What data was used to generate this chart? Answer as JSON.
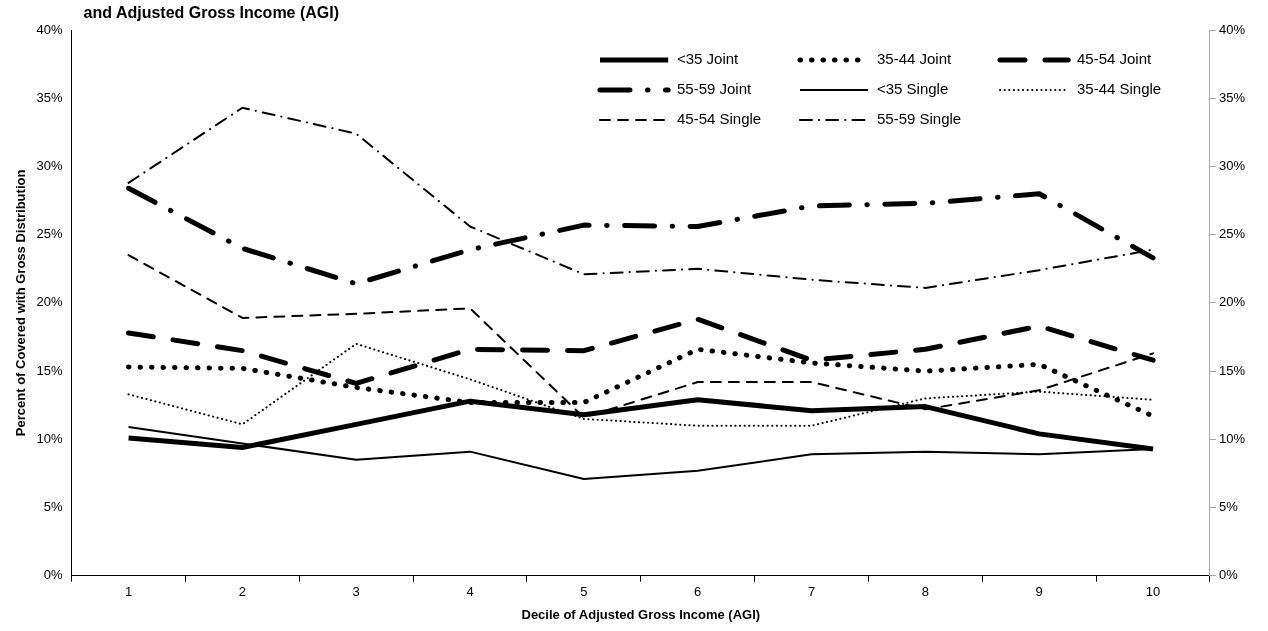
{
  "chart_data": {
    "type": "line",
    "title": "and Adjusted Gross Income (AGI)",
    "xlabel": "Decile of Adjusted Gross Income (AGI)",
    "ylabel": "Percent of Covered with Gross Distribution",
    "categories": [
      "1",
      "2",
      "3",
      "4",
      "5",
      "6",
      "7",
      "8",
      "9",
      "10"
    ],
    "series": [
      {
        "name": "<35 Joint",
        "color": "#000000",
        "line_style": "solid",
        "values": [
          10.1,
          9.4,
          11.1,
          12.8,
          11.8,
          12.9,
          12.1,
          12.4,
          10.4,
          9.3
        ]
      },
      {
        "name": "35-44 Joint",
        "color": "#000000",
        "line_style": "dotted",
        "values": [
          15.3,
          15.2,
          13.8,
          12.7,
          12.7,
          16.6,
          15.6,
          15.0,
          15.5,
          11.7
        ]
      },
      {
        "name": "45-54 Joint",
        "color": "#000000",
        "line_style": "dashed",
        "values": [
          17.8,
          16.5,
          14.1,
          16.6,
          16.5,
          18.8,
          15.8,
          16.6,
          18.3,
          15.8
        ]
      },
      {
        "name": "55-59 Joint",
        "color": "#000000",
        "line_style": "dashdot",
        "values": [
          28.4,
          24.0,
          21.4,
          23.9,
          25.7,
          25.6,
          27.1,
          27.3,
          28.0,
          23.3
        ]
      },
      {
        "name": "<35 Single",
        "color": "#000000",
        "line_style": "solid",
        "values": [
          10.9,
          9.7,
          8.5,
          9.1,
          7.1,
          7.7,
          8.9,
          9.1,
          8.9,
          9.3
        ]
      },
      {
        "name": "35-44 Single",
        "color": "#000000",
        "line_style": "dotted",
        "values": [
          13.3,
          11.1,
          17.0,
          14.4,
          11.5,
          11.0,
          11.0,
          13.0,
          13.5,
          12.9
        ]
      },
      {
        "name": "45-54 Single",
        "color": "#000000",
        "line_style": "dashed",
        "values": [
          23.5,
          18.9,
          19.2,
          19.6,
          11.6,
          14.2,
          14.2,
          12.2,
          13.6,
          16.3
        ]
      },
      {
        "name": "55-59 Single",
        "color": "#000000",
        "line_style": "dashdot",
        "values": [
          28.8,
          34.3,
          32.4,
          25.6,
          22.1,
          22.5,
          21.7,
          21.1,
          22.4,
          23.9
        ]
      }
    ],
    "ylim": [
      0,
      40
    ],
    "yticks": [
      {
        "value": 0,
        "label": "0%"
      },
      {
        "value": 5,
        "label": "5%"
      },
      {
        "value": 10,
        "label": "10%"
      },
      {
        "value": 15,
        "label": "15%"
      },
      {
        "value": 20,
        "label": "20%"
      },
      {
        "value": 25,
        "label": "25%"
      },
      {
        "value": 30,
        "label": "30%"
      },
      {
        "value": 35,
        "label": "35%"
      },
      {
        "value": 40,
        "label": "40%"
      }
    ],
    "y2lim": [
      0,
      40
    ],
    "y2ticks": [
      {
        "value": 0,
        "label": "0%"
      },
      {
        "value": 5,
        "label": "5%"
      },
      {
        "value": 10,
        "label": "10%"
      },
      {
        "value": 15,
        "label": "15%"
      },
      {
        "value": 20,
        "label": "20%"
      },
      {
        "value": 25,
        "label": "25%"
      },
      {
        "value": 30,
        "label": "30%"
      },
      {
        "value": 35,
        "label": "35%"
      },
      {
        "value": 40,
        "label": "40%"
      }
    ],
    "grid": false,
    "legend": "top right",
    "marker": "none"
  }
}
